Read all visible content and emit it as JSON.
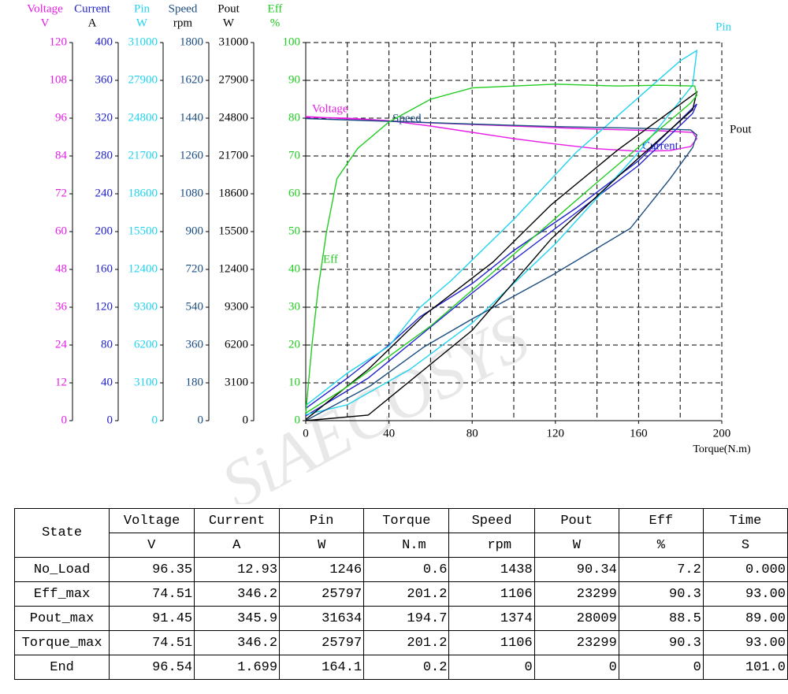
{
  "chart_data": {
    "type": "line",
    "watermark": "SiAECOSYS",
    "xlabel": "Torque(N.m)",
    "xlim": [
      0,
      200
    ],
    "xticks": [
      0,
      40,
      80,
      120,
      160,
      200
    ],
    "xgrid": [
      20,
      60,
      100,
      140,
      180
    ],
    "grid": true,
    "y_axes": [
      {
        "name": "Voltage",
        "unit": "V",
        "color": "#e61ee6",
        "lim": [
          0,
          120
        ],
        "ticks": [
          0,
          12,
          24,
          36,
          48,
          60,
          72,
          84,
          96,
          108,
          120
        ]
      },
      {
        "name": "Current",
        "unit": "A",
        "color": "#2222cc",
        "lim": [
          0,
          400
        ],
        "ticks": [
          0,
          40,
          80,
          120,
          160,
          200,
          240,
          280,
          320,
          360,
          400
        ]
      },
      {
        "name": "Pin",
        "unit": "W",
        "color": "#22d4f0",
        "lim": [
          0,
          31000
        ],
        "ticks": [
          0,
          3100,
          6200,
          9300,
          12400,
          15500,
          18600,
          21700,
          24800,
          27900,
          31000
        ]
      },
      {
        "name": "Speed",
        "unit": "rpm",
        "color": "#1c4d80",
        "lim": [
          0,
          1800
        ],
        "ticks": [
          0,
          180,
          360,
          540,
          720,
          900,
          1080,
          1260,
          1440,
          1620,
          1800
        ]
      },
      {
        "name": "Pout",
        "unit": "W",
        "color": "#000000",
        "lim": [
          0,
          31000
        ],
        "ticks": [
          0,
          3100,
          6200,
          9300,
          12400,
          15500,
          18600,
          21700,
          24800,
          27900,
          31000
        ]
      },
      {
        "name": "Eff",
        "unit": "%",
        "color": "#22cc22",
        "lim": [
          0,
          100
        ],
        "ticks": [
          0,
          10,
          20,
          30,
          40,
          50,
          60,
          70,
          80,
          90,
          100
        ]
      }
    ],
    "series": [
      {
        "name": "Voltage",
        "color": "#e61ee6",
        "axis": 0,
        "x": [
          0,
          20,
          40,
          60,
          80,
          100,
          120,
          140,
          160,
          175,
          185,
          188,
          186,
          170,
          140,
          100,
          60,
          20,
          0
        ],
        "values": [
          96.3,
          96,
          95.2,
          93.5,
          91.5,
          89.5,
          87.8,
          86.3,
          85.5,
          85.7,
          87,
          89.5,
          91.5,
          92,
          92.5,
          93.5,
          94.5,
          95.8,
          96.5
        ]
      },
      {
        "name": "Current",
        "color": "#2222cc",
        "axis": 1,
        "x": [
          0,
          20,
          40,
          55,
          80,
          100,
          130,
          160,
          188,
          186,
          160,
          130,
          100,
          80,
          55,
          30,
          0
        ],
        "values": [
          13,
          45,
          80,
          110,
          145,
          180,
          225,
          275,
          335,
          325,
          270,
          220,
          170,
          135,
          90,
          45,
          5
        ]
      },
      {
        "name": "Pin",
        "color": "#22d4f0",
        "axis": 2,
        "x": [
          0,
          20,
          40,
          55,
          70,
          100,
          130,
          160,
          180,
          188,
          186,
          160,
          120,
          80,
          50,
          20,
          0
        ],
        "values": [
          1246,
          3900,
          6100,
          9300,
          11500,
          16500,
          22000,
          26500,
          29500,
          30350,
          27500,
          22000,
          14500,
          8000,
          4200,
          1300,
          500
        ]
      },
      {
        "name": "Speed",
        "color": "#1c4d80",
        "axis": 3,
        "x": [
          0,
          40,
          80,
          120,
          160,
          185,
          188,
          186,
          175,
          156,
          118,
          80,
          57,
          31,
          0
        ],
        "values": [
          1438,
          1425,
          1412,
          1400,
          1392,
          1384,
          1360,
          1300,
          1150,
          915,
          690,
          484,
          352,
          165,
          0
        ]
      },
      {
        "name": "Pout",
        "color": "#000000",
        "axis": 4,
        "x": [
          0,
          30,
          57,
          90,
          118,
          150,
          188,
          186,
          150,
          118,
          80,
          30,
          0
        ],
        "values": [
          90,
          4200,
          8660,
          13000,
          17700,
          22200,
          26940,
          25500,
          20000,
          14900,
          7400,
          450,
          0
        ]
      },
      {
        "name": "Eff",
        "color": "#22cc22",
        "axis": 5,
        "x": [
          0,
          3,
          6,
          10,
          15,
          25,
          40,
          60,
          80,
          100,
          120,
          150,
          170,
          187,
          188,
          185,
          140,
          100,
          60,
          20,
          0
        ],
        "values": [
          2,
          20,
          35,
          50,
          64,
          72,
          79,
          85,
          88,
          88.5,
          89,
          88.5,
          88.7,
          88.5,
          86,
          84,
          63,
          44,
          25,
          9,
          2
        ]
      }
    ]
  },
  "table": {
    "columns": [
      "State",
      "Voltage",
      "Current",
      "Pin",
      "Torque",
      "Speed",
      "Pout",
      "Eff",
      "Time"
    ],
    "units": [
      "V",
      "A",
      "W",
      "N.m",
      "rpm",
      "W",
      "%",
      "S"
    ],
    "rows": [
      [
        "No_Load",
        "96.35",
        "12.93",
        "1246",
        "0.6",
        "1438",
        "90.34",
        "7.2",
        "0.000"
      ],
      [
        "Eff_max",
        "74.51",
        "346.2",
        "25797",
        "201.2",
        "1106",
        "23299",
        "90.3",
        "93.00"
      ],
      [
        "Pout_max",
        "91.45",
        "345.9",
        "31634",
        "194.7",
        "1374",
        "28009",
        "88.5",
        "89.00"
      ],
      [
        "Torque_max",
        "74.51",
        "346.2",
        "25797",
        "201.2",
        "1106",
        "23299",
        "90.3",
        "93.00"
      ],
      [
        "End",
        "96.54",
        "1.699",
        "164.1",
        "0.2",
        "0",
        "0",
        "0",
        "101.0"
      ]
    ]
  }
}
